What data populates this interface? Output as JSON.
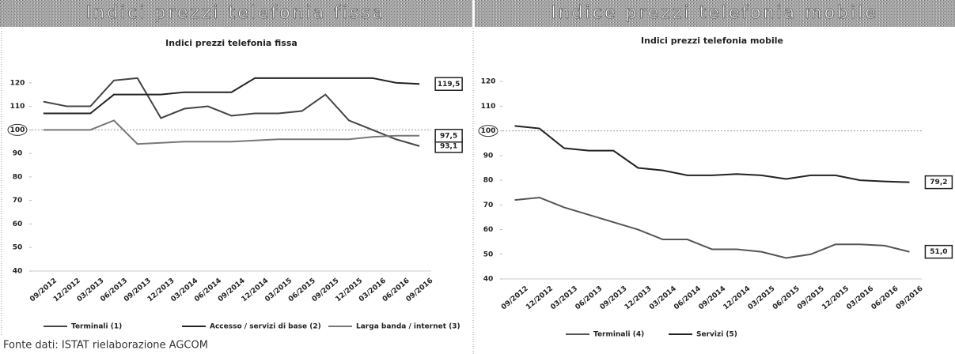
{
  "headers": [
    "Indici prezzi telefonia fissa",
    "Indice prezzi telefonia mobile"
  ],
  "source": "Fonte dati: ISTAT rielaborazione AGCOM",
  "chart_data": [
    {
      "type": "line",
      "title": "Indici prezzi telefonia fissa",
      "categories": [
        "09/2012",
        "12/2012",
        "03/2013",
        "06/2013",
        "09/2013",
        "12/2013",
        "03/2014",
        "06/2014",
        "09/2014",
        "12/2014",
        "03/2015",
        "06/2015",
        "09/2015",
        "12/2015",
        "03/2016",
        "06/2016",
        "09/2016"
      ],
      "series": [
        {
          "name": "Terminali (1)",
          "color": "#444444",
          "values": [
            112,
            110,
            110,
            121,
            122,
            105,
            109,
            110,
            106,
            107,
            107,
            108,
            115,
            104,
            100,
            96,
            93.1
          ],
          "value_labels": [
            null,
            null,
            null,
            null,
            null,
            null,
            null,
            null,
            null,
            null,
            null,
            null,
            null,
            null,
            null,
            null,
            "93,1"
          ]
        },
        {
          "name": "Accesso / servizi di base (2)",
          "color": "#222222",
          "values": [
            107,
            107,
            107,
            115,
            115,
            115,
            116,
            116,
            116,
            122,
            122,
            122,
            122,
            122,
            122,
            120,
            119.5
          ],
          "value_labels": [
            null,
            null,
            null,
            null,
            null,
            null,
            null,
            null,
            null,
            null,
            null,
            null,
            null,
            null,
            null,
            null,
            "119,5"
          ]
        },
        {
          "name": "Larga banda / internet (3)",
          "color": "#777777",
          "values": [
            100,
            100,
            100,
            104,
            94,
            94.5,
            95,
            95,
            95,
            95.5,
            96,
            96,
            96,
            96,
            97,
            97.5,
            97.5
          ],
          "value_labels": [
            null,
            null,
            null,
            null,
            null,
            null,
            null,
            null,
            null,
            null,
            null,
            null,
            null,
            null,
            null,
            null,
            "97,5"
          ]
        }
      ],
      "ylim": [
        40,
        130
      ],
      "yticks": [
        40,
        50,
        60,
        70,
        80,
        90,
        100,
        110,
        120
      ],
      "reference_line": 100
    },
    {
      "type": "line",
      "title": "Indici prezzi telefonia mobile",
      "categories": [
        "09/2012",
        "12/2012",
        "03/2013",
        "06/2013",
        "09/2013",
        "12/2013",
        "03/2014",
        "06/2014",
        "09/2014",
        "12/2014",
        "03/2015",
        "06/2015",
        "09/2015",
        "12/2015",
        "03/2016",
        "06/2016",
        "09/2016"
      ],
      "series": [
        {
          "name": "Terminali (4)",
          "color": "#555555",
          "values": [
            72,
            73,
            69,
            66,
            63,
            60,
            56,
            56,
            52,
            52,
            51,
            48.5,
            50,
            54,
            54,
            53.5,
            51.0
          ],
          "value_labels": [
            null,
            null,
            null,
            null,
            null,
            null,
            null,
            null,
            null,
            null,
            null,
            null,
            null,
            null,
            null,
            null,
            "51,0"
          ]
        },
        {
          "name": "Servizi (5)",
          "color": "#222222",
          "values": [
            102,
            101,
            93,
            92,
            92,
            85,
            84,
            82,
            82,
            82.5,
            82,
            80.5,
            82,
            82,
            80,
            79.5,
            79.2
          ],
          "value_labels": [
            null,
            null,
            null,
            null,
            null,
            null,
            null,
            null,
            null,
            null,
            null,
            null,
            null,
            null,
            null,
            null,
            "79,2"
          ]
        }
      ],
      "ylim": [
        40,
        130
      ],
      "yticks": [
        40,
        50,
        60,
        70,
        80,
        90,
        100,
        110,
        120
      ],
      "reference_line": 100
    }
  ]
}
